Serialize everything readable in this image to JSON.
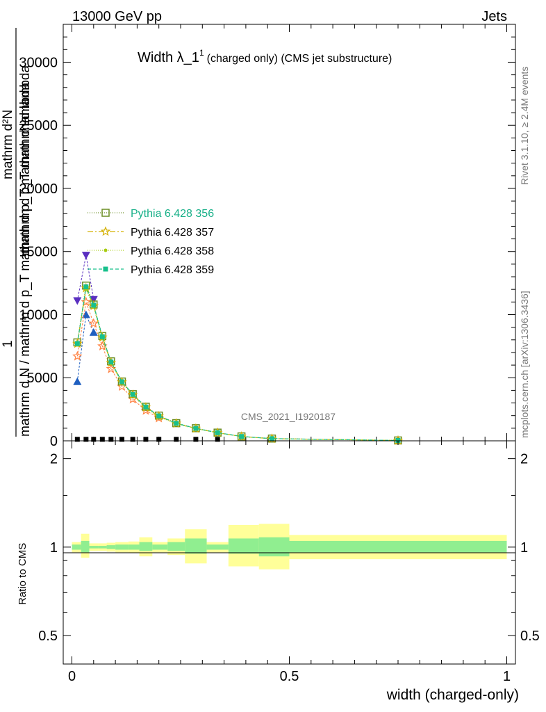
{
  "header": {
    "left": "13000 GeV pp",
    "right": "Jets"
  },
  "side": {
    "rivet": "Rivet 3.1.10, ≥ 2.4M events",
    "mcplots": "mcplots.cern.ch [arXiv:1306.3436]"
  },
  "chart_data": [
    {
      "type": "line",
      "title": "Width λ_1¹ (charged only) (CMS jet substructure)",
      "title_main": "Width λ_1",
      "title_sup": "1",
      "title_rest": "(charged only) (CMS jet substructure)",
      "watermark": "CMS_2021_I1920187",
      "ylabel_parts": {
        "one": "1",
        "num": "mathrm d²N",
        "den_mid": "mathrm d p_T mathrm d lambda",
        "den": "mathrm d N / mathrm d p_T mathrm d p_T mathrm d lambda"
      },
      "xlim": [
        -0.02,
        1.02
      ],
      "ylim": [
        0,
        33000
      ],
      "yticks": [
        0,
        5000,
        10000,
        15000,
        20000,
        25000,
        30000
      ],
      "ytick_labels": [
        "0",
        "5000",
        "10000",
        "15000",
        "20000",
        "25000",
        "30000"
      ],
      "grid": false,
      "legend_position": "upper-left",
      "x": [
        0.0125,
        0.0325,
        0.05,
        0.07,
        0.09,
        0.115,
        0.14,
        0.17,
        0.2,
        0.24,
        0.285,
        0.335,
        0.39,
        0.46,
        0.75
      ],
      "series": [
        {
          "name": "Pythia 6.428 356",
          "color": "#6b8e23",
          "marker": "open-square",
          "dash": "1,2",
          "values": [
            7800,
            12300,
            10800,
            8300,
            6300,
            4700,
            3700,
            2700,
            2000,
            1400,
            1000,
            650,
            350,
            180,
            30
          ]
        },
        {
          "name": "Pythia 6.428 357",
          "color": "#d4b000",
          "marker": "star",
          "dash": "8,3,2,3",
          "values": [
            7700,
            12100,
            10700,
            8200,
            6200,
            4650,
            3650,
            2650,
            1950,
            1380,
            980,
            640,
            340,
            170,
            30
          ]
        },
        {
          "name": "Pythia 6.428 358",
          "color": "#a8cc10",
          "marker": "dot",
          "dash": "1,2",
          "values": [
            7600,
            12000,
            10600,
            8100,
            6150,
            4600,
            3600,
            2600,
            1900,
            1350,
            960,
            630,
            335,
            170,
            28
          ]
        },
        {
          "name": "Pythia 6.428 359",
          "color": "#18c08c",
          "marker": "filled-square",
          "dash": "5,3",
          "values": [
            7700,
            12200,
            10750,
            8250,
            6250,
            4680,
            3680,
            2680,
            1980,
            1390,
            990,
            645,
            345,
            175,
            30
          ]
        }
      ],
      "extra_markers": [
        {
          "color": "#5a2fc0",
          "marker": "down-triangle",
          "x": [
            0.0125,
            0.0325,
            0.05
          ],
          "values": [
            11100,
            14700,
            11200
          ]
        },
        {
          "color": "#1f5fc0",
          "marker": "up-triangle",
          "x": [
            0.0125,
            0.0325,
            0.05
          ],
          "values": [
            4700,
            10000,
            8600
          ]
        },
        {
          "color": "#ff8040",
          "marker": "star",
          "x": [
            0.0125,
            0.0325,
            0.05,
            0.07,
            0.09,
            0.115,
            0.14,
            0.17,
            0.2
          ],
          "values": [
            6700,
            11000,
            9300,
            7500,
            5700,
            4300,
            3300,
            2400,
            1800
          ]
        }
      ],
      "data_points": {
        "x": [
          0.0125,
          0.0325,
          0.05,
          0.07,
          0.09,
          0.115,
          0.14,
          0.17,
          0.2,
          0.24,
          0.285,
          0.335
        ],
        "values": [
          120,
          120,
          120,
          120,
          120,
          120,
          120,
          120,
          120,
          120,
          120,
          120
        ]
      }
    },
    {
      "type": "area",
      "ylabel": "Ratio to CMS",
      "xlabel": "width (charged-only)",
      "log_scale_y": true,
      "ylim": [
        0.4,
        2.3
      ],
      "yticks": [
        0.5,
        1,
        2
      ],
      "ytick_labels_left": [
        "0.5",
        "1",
        "2"
      ],
      "ytick_labels_right": [
        "0.5",
        "1",
        "2"
      ],
      "xticks": [
        0,
        0.5,
        1
      ],
      "xtick_labels": [
        "0",
        "0.5",
        "1"
      ],
      "band_colors": {
        "inner": "#90ee90",
        "outer": "#ffff99"
      },
      "bins": [
        {
          "x": [
            0.0,
            0.021
          ],
          "inner": [
            0.98,
            1.02
          ],
          "outer": [
            0.96,
            1.04
          ]
        },
        {
          "x": [
            0.021,
            0.04
          ],
          "inner": [
            0.96,
            1.05
          ],
          "outer": [
            0.92,
            1.11
          ]
        },
        {
          "x": [
            0.04,
            0.06
          ],
          "inner": [
            0.99,
            1.01
          ],
          "outer": [
            0.97,
            1.03
          ]
        },
        {
          "x": [
            0.06,
            0.08
          ],
          "inner": [
            0.99,
            1.01
          ],
          "outer": [
            0.97,
            1.03
          ]
        },
        {
          "x": [
            0.08,
            0.1
          ],
          "inner": [
            0.985,
            1.015
          ],
          "outer": [
            0.965,
            1.035
          ]
        },
        {
          "x": [
            0.1,
            0.13
          ],
          "inner": [
            0.98,
            1.02
          ],
          "outer": [
            0.96,
            1.04
          ]
        },
        {
          "x": [
            0.13,
            0.155
          ],
          "inner": [
            0.98,
            1.02
          ],
          "outer": [
            0.955,
            1.045
          ]
        },
        {
          "x": [
            0.155,
            0.185
          ],
          "inner": [
            0.97,
            1.04
          ],
          "outer": [
            0.93,
            1.08
          ]
        },
        {
          "x": [
            0.185,
            0.22
          ],
          "inner": [
            0.98,
            1.02
          ],
          "outer": [
            0.96,
            1.04
          ]
        },
        {
          "x": [
            0.22,
            0.26
          ],
          "inner": [
            0.97,
            1.04
          ],
          "outer": [
            0.94,
            1.07
          ]
        },
        {
          "x": [
            0.26,
            0.31
          ],
          "inner": [
            0.95,
            1.07
          ],
          "outer": [
            0.88,
            1.15
          ]
        },
        {
          "x": [
            0.31,
            0.36
          ],
          "inner": [
            0.98,
            1.02
          ],
          "outer": [
            0.96,
            1.04
          ]
        },
        {
          "x": [
            0.36,
            0.43
          ],
          "inner": [
            0.95,
            1.07
          ],
          "outer": [
            0.86,
            1.19
          ]
        },
        {
          "x": [
            0.43,
            0.5
          ],
          "inner": [
            0.93,
            1.08
          ],
          "outer": [
            0.84,
            1.2
          ]
        },
        {
          "x": [
            0.5,
            1.0
          ],
          "inner": [
            0.96,
            1.05
          ],
          "outer": [
            0.91,
            1.1
          ]
        }
      ]
    }
  ]
}
